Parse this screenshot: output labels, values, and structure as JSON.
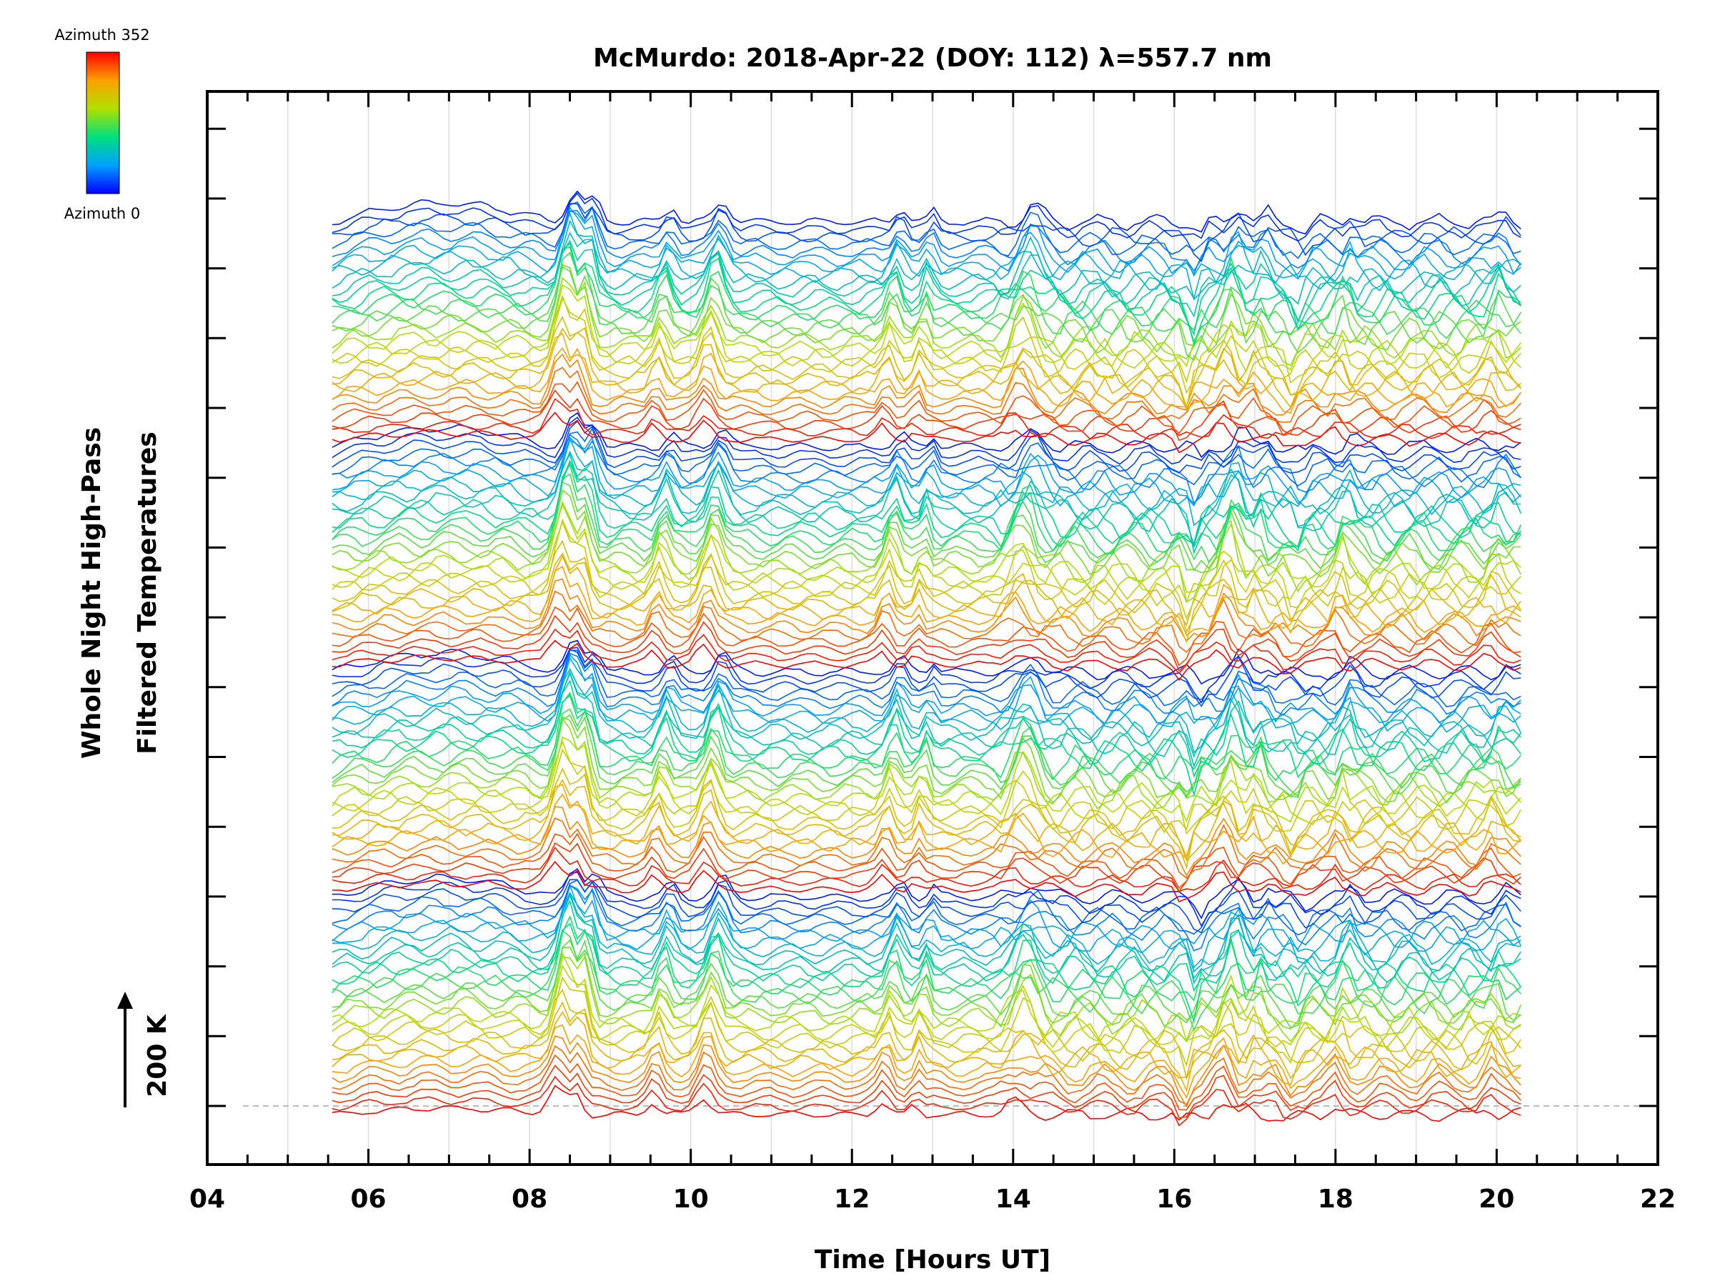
{
  "chart_data": {
    "type": "line",
    "title": "McMurdo: 2018-Apr-22 (DOY: 112) λ=557.7 nm",
    "xlabel": "Time [Hours UT]",
    "ylabel_line1": "Whole Night High-Pass",
    "ylabel_line2": "Filtered Temperatures",
    "scale_label": "200 K",
    "xlim": [
      4,
      22
    ],
    "x_tick_labels": [
      "04",
      "06",
      "08",
      "10",
      "12",
      "14",
      "16",
      "18",
      "20",
      "22"
    ],
    "x_tick_values": [
      4,
      6,
      8,
      10,
      12,
      14,
      16,
      18,
      20,
      22
    ],
    "data_time_range": [
      5.55,
      20.3
    ],
    "colorbar": {
      "top_label": "Azimuth 352",
      "bottom_label": "Azimuth 0",
      "colormap": "rainbow"
    },
    "series_description": "Stacked high-pass filtered temperature traces, one per azimuth (0-352 deg), vertically offset",
    "num_series": 120,
    "events_hours": [
      8.5,
      8.7,
      9.65,
      10.3,
      12.5,
      12.9,
      14.2,
      16.2,
      16.7,
      17.5,
      18.1,
      20.0
    ]
  },
  "colors": {
    "azimuth_low": "#0000ff",
    "azimuth_high": "#ff0000",
    "gridline": "#dcdcdc",
    "axis": "#000000"
  }
}
